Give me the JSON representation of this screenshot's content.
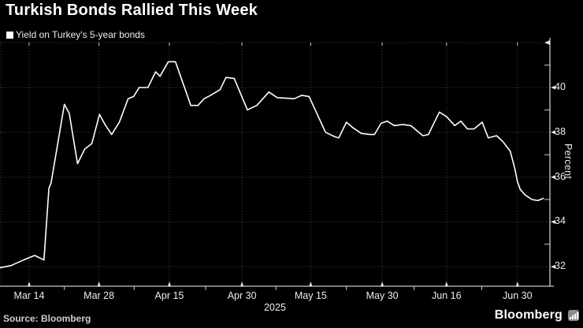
{
  "title": "Turkish Bonds Rallied This Week",
  "legend": {
    "marker": "filled-square",
    "marker_color": "#ffffff",
    "label": "Yield on Turkey's 5-year bonds"
  },
  "footer": {
    "source": "Source: Bloomberg",
    "brand": "Bloomberg",
    "brand_icon": "bar-chart-icon"
  },
  "colors": {
    "background": "#000000",
    "line": "#ffffff",
    "grid": "#484848",
    "axis": "#c8c8c8",
    "tick": "#e8e8e8",
    "text": "#ececec",
    "brand_icon_bg": "#8c8c8c"
  },
  "chart_data": {
    "type": "line",
    "title": "Turkish Bonds Rallied This Week",
    "ylabel": "Percent",
    "x_axis_year": "2025",
    "grid": "dotted",
    "legend_position": "top-left",
    "ylim": [
      31.1,
      42.0
    ],
    "y_ticks": [
      32,
      34,
      36,
      38,
      40
    ],
    "y_minor_ticks": [
      33,
      35,
      37,
      39,
      41
    ],
    "x_ticks": [
      {
        "pos": 0.053,
        "label": "Mar 14"
      },
      {
        "pos": 0.18,
        "label": "Mar 28"
      },
      {
        "pos": 0.308,
        "label": "Apr 15"
      },
      {
        "pos": 0.44,
        "label": "Apr 30"
      },
      {
        "pos": 0.565,
        "label": "May 15"
      },
      {
        "pos": 0.695,
        "label": "May 30"
      },
      {
        "pos": 0.812,
        "label": "Jun 16"
      },
      {
        "pos": 0.941,
        "label": "Jun 30"
      }
    ],
    "x_minor_tick_pos": [
      0.117,
      0.244,
      0.374,
      0.502,
      0.63,
      0.753,
      0.876
    ],
    "x_unit": "fraction of x-axis width (daily series, Mar-Jul 2025)",
    "series": [
      {
        "name": "Yield on Turkey's 5-year bonds",
        "color": "#ffffff",
        "points": [
          [
            0.0,
            31.95
          ],
          [
            0.02,
            32.05
          ],
          [
            0.043,
            32.3
          ],
          [
            0.053,
            32.4
          ],
          [
            0.063,
            32.5
          ],
          [
            0.076,
            32.35
          ],
          [
            0.08,
            32.3
          ],
          [
            0.089,
            35.5
          ],
          [
            0.093,
            35.75
          ],
          [
            0.117,
            39.25
          ],
          [
            0.126,
            38.85
          ],
          [
            0.141,
            36.6
          ],
          [
            0.154,
            37.25
          ],
          [
            0.167,
            37.5
          ],
          [
            0.181,
            38.8
          ],
          [
            0.191,
            38.35
          ],
          [
            0.203,
            37.9
          ],
          [
            0.217,
            38.45
          ],
          [
            0.233,
            39.5
          ],
          [
            0.243,
            39.6
          ],
          [
            0.253,
            40.0
          ],
          [
            0.269,
            40.0
          ],
          [
            0.283,
            40.7
          ],
          [
            0.291,
            40.5
          ],
          [
            0.306,
            41.15
          ],
          [
            0.319,
            41.15
          ],
          [
            0.347,
            39.2
          ],
          [
            0.36,
            39.2
          ],
          [
            0.371,
            39.5
          ],
          [
            0.383,
            39.65
          ],
          [
            0.4,
            39.9
          ],
          [
            0.411,
            40.45
          ],
          [
            0.426,
            40.4
          ],
          [
            0.45,
            39.0
          ],
          [
            0.467,
            39.2
          ],
          [
            0.489,
            39.8
          ],
          [
            0.504,
            39.55
          ],
          [
            0.535,
            39.5
          ],
          [
            0.549,
            39.65
          ],
          [
            0.562,
            39.6
          ],
          [
            0.592,
            38.0
          ],
          [
            0.609,
            37.8
          ],
          [
            0.616,
            37.75
          ],
          [
            0.63,
            38.45
          ],
          [
            0.642,
            38.2
          ],
          [
            0.657,
            37.95
          ],
          [
            0.673,
            37.9
          ],
          [
            0.681,
            37.9
          ],
          [
            0.693,
            38.4
          ],
          [
            0.704,
            38.5
          ],
          [
            0.717,
            38.3
          ],
          [
            0.733,
            38.35
          ],
          [
            0.747,
            38.3
          ],
          [
            0.769,
            37.85
          ],
          [
            0.779,
            37.9
          ],
          [
            0.799,
            38.9
          ],
          [
            0.812,
            38.7
          ],
          [
            0.827,
            38.3
          ],
          [
            0.838,
            38.5
          ],
          [
            0.85,
            38.15
          ],
          [
            0.862,
            38.15
          ],
          [
            0.877,
            38.45
          ],
          [
            0.888,
            37.75
          ],
          [
            0.903,
            37.85
          ],
          [
            0.914,
            37.6
          ],
          [
            0.928,
            37.15
          ],
          [
            0.936,
            36.4
          ],
          [
            0.941,
            35.8
          ],
          [
            0.946,
            35.45
          ],
          [
            0.955,
            35.2
          ],
          [
            0.967,
            35.0
          ],
          [
            0.978,
            34.95
          ],
          [
            0.988,
            35.05
          ]
        ]
      }
    ]
  }
}
